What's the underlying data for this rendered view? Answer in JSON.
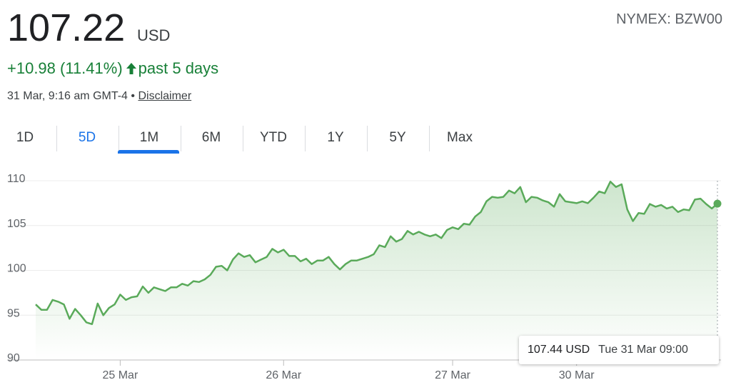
{
  "header": {
    "price": "107.22",
    "currency": "USD",
    "exchange": "NYMEX: BZW00",
    "change": "+10.98 (11.41%)",
    "period": "past 5 days",
    "timestamp": "31 Mar, 9:16 am GMT-4",
    "separator": "•",
    "disclaimer": "Disclaimer"
  },
  "tabs": {
    "items": [
      "1D",
      "5D",
      "1M",
      "6M",
      "YTD",
      "1Y",
      "5Y",
      "Max"
    ],
    "selected": 1
  },
  "chart_data": {
    "type": "area",
    "color": "#5aaa5a",
    "values": [
      96.2,
      95.6,
      95.6,
      96.7,
      96.5,
      96.2,
      94.6,
      95.7,
      95.0,
      94.2,
      94.0,
      96.3,
      95.0,
      95.8,
      96.2,
      97.3,
      96.7,
      97.0,
      97.1,
      98.2,
      97.5,
      98.1,
      97.9,
      97.7,
      98.1,
      98.1,
      98.5,
      98.3,
      98.8,
      98.7,
      99.0,
      99.5,
      100.4,
      100.5,
      100.0,
      101.2,
      101.9,
      101.5,
      101.7,
      100.9,
      101.2,
      101.5,
      102.4,
      102.0,
      102.3,
      101.6,
      101.6,
      101.0,
      101.3,
      100.7,
      101.1,
      101.1,
      101.5,
      100.7,
      100.1,
      100.7,
      101.1,
      101.1,
      101.3,
      101.5,
      101.8,
      102.8,
      102.6,
      103.8,
      103.2,
      103.5,
      104.4,
      104.0,
      104.3,
      104.0,
      103.8,
      104.0,
      103.6,
      104.5,
      104.8,
      104.6,
      105.2,
      105.1,
      106.0,
      106.5,
      107.7,
      108.2,
      108.1,
      108.2,
      108.9,
      108.6,
      109.3,
      107.6,
      108.2,
      108.1,
      107.8,
      107.6,
      107.1,
      108.5,
      107.7,
      107.6,
      107.5,
      107.7,
      107.5,
      108.1,
      108.8,
      108.6,
      109.9,
      109.3,
      109.6,
      106.8,
      105.5,
      106.4,
      106.3,
      107.4,
      107.1,
      107.3,
      106.9,
      107.1,
      106.5,
      106.8,
      106.7,
      107.9,
      108.0,
      107.4,
      106.9,
      107.44
    ],
    "xlim": [
      0,
      121
    ],
    "xticks": [
      {
        "value": 15,
        "label": "25 Mar"
      },
      {
        "value": 44,
        "label": "26 Mar"
      },
      {
        "value": 74,
        "label": "27 Mar"
      },
      {
        "value": 96,
        "label": "30 Mar"
      }
    ],
    "ylim": [
      90,
      110
    ],
    "yticks": [
      90,
      95,
      100,
      105,
      110
    ],
    "grid": true,
    "tooltip": {
      "value": "107.44 USD",
      "time": "Tue 31 Mar 09:00"
    }
  }
}
